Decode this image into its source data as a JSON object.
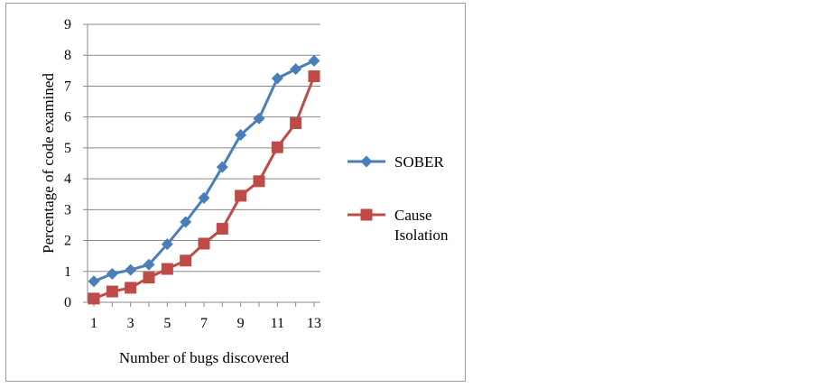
{
  "chart_data": {
    "type": "line",
    "title": "",
    "xlabel": "Number of bugs discovered",
    "ylabel": "Percentage of code examined",
    "xlim": [
      1,
      13
    ],
    "ylim": [
      0,
      9
    ],
    "x_ticks": [
      "1",
      "3",
      "5",
      "7",
      "9",
      "11",
      "13"
    ],
    "y_ticks": [
      "0",
      "1",
      "2",
      "3",
      "4",
      "5",
      "6",
      "7",
      "8",
      "9"
    ],
    "grid": "horizontal",
    "legend_position": "right",
    "x": [
      1,
      2,
      3,
      4,
      5,
      6,
      7,
      8,
      9,
      10,
      11,
      12,
      13
    ],
    "series": [
      {
        "name": "SOBER",
        "marker": "diamond",
        "color": "#4a7ebb",
        "values": [
          0.68,
          0.92,
          1.05,
          1.22,
          1.88,
          2.6,
          3.38,
          4.38,
          5.42,
          5.95,
          7.25,
          7.55,
          7.82
        ]
      },
      {
        "name": "Cause\nIsolation",
        "label_lines": [
          "Cause",
          "Isolation"
        ],
        "marker": "square",
        "color": "#be4b48",
        "values": [
          0.12,
          0.35,
          0.47,
          0.8,
          1.08,
          1.35,
          1.9,
          2.38,
          3.45,
          3.92,
          5.02,
          5.8,
          7.32
        ]
      }
    ]
  }
}
